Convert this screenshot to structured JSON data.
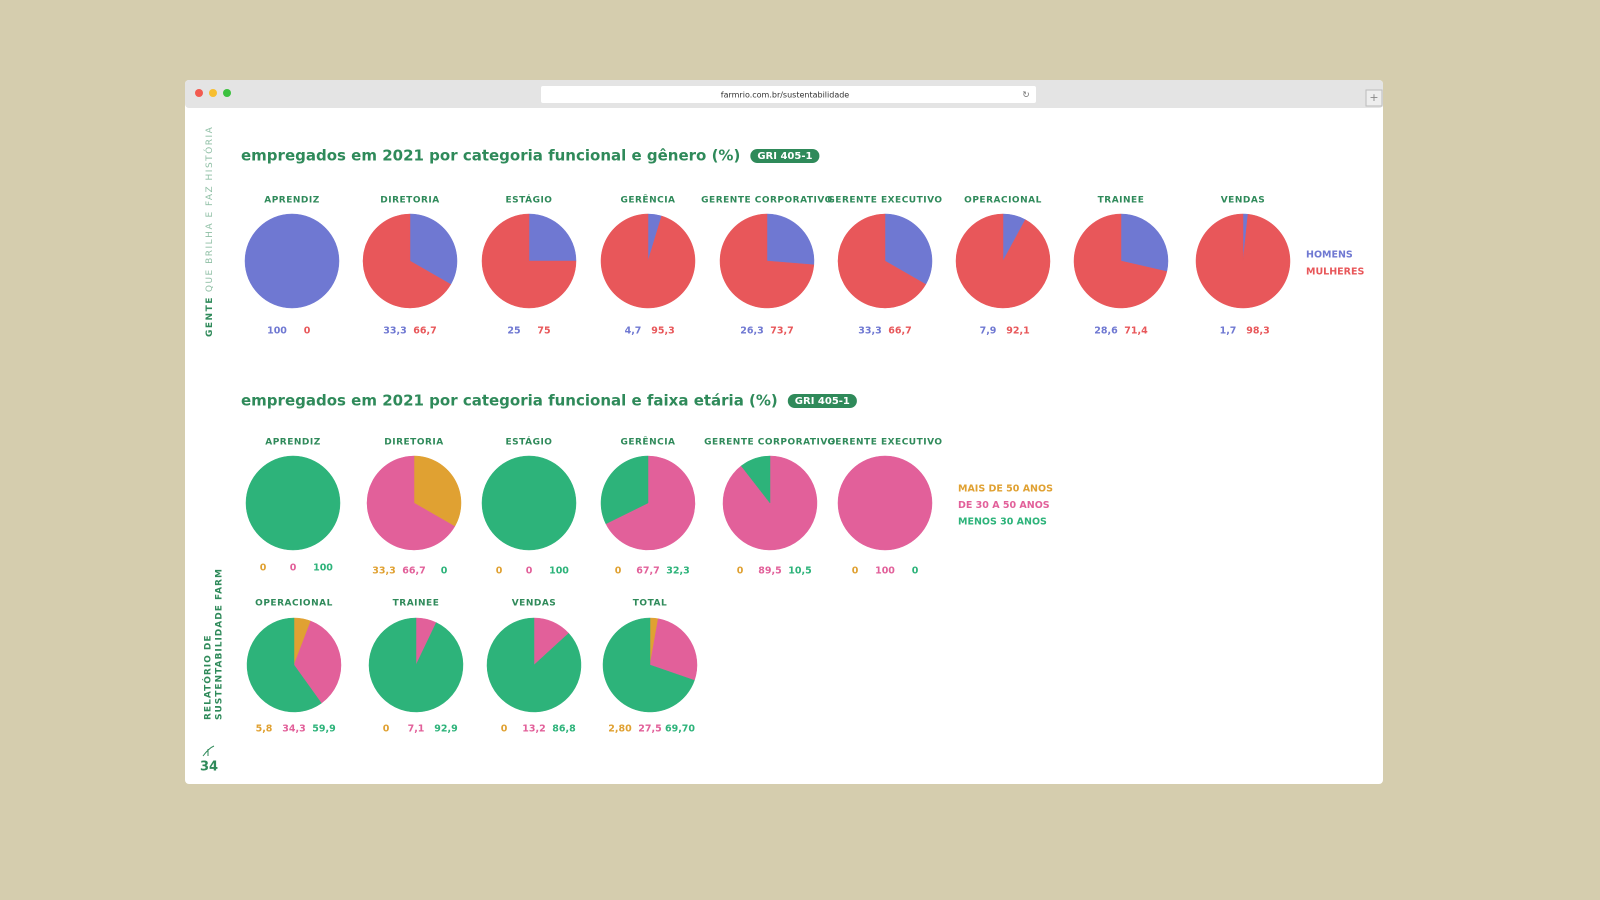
{
  "browser": {
    "url": "farmrio.com.br/sustentabilidade"
  },
  "sidebar": {
    "section_bold": "GENTE",
    "section": "QUE BRILHA E FAZ HISTÓRIA",
    "report_line1": "RELATÓRIO DE",
    "report_line2": "SUSTENTABILIDADE FARM",
    "page_number": 34
  },
  "chart_data": [
    {
      "type": "pie",
      "title": "empregados em 2021 por categoria funcional e gênero (%)",
      "badge": "GRI 405-1",
      "categories": [
        "APRENDIZ",
        "DIRETORIA",
        "ESTÁGIO",
        "GERÊNCIA",
        "GERENTE CORPORATIVO",
        "GERENTE EXECUTIVO",
        "OPERACIONAL",
        "TRAINEE",
        "VENDAS"
      ],
      "series": [
        {
          "name": "HOMENS",
          "color": "#6f78d2",
          "values": [
            100,
            33.3,
            25,
            4.7,
            26.3,
            33.3,
            7.9,
            28.6,
            1.7
          ],
          "value_labels": [
            "100",
            "33,3",
            "25",
            "4,7",
            "26,3",
            "33,3",
            "7,9",
            "28,6",
            "1,7"
          ]
        },
        {
          "name": "MULHERES",
          "color": "#e8575a",
          "values": [
            0,
            66.7,
            75,
            95.3,
            73.7,
            66.7,
            92.1,
            71.4,
            98.3
          ],
          "value_labels": [
            "0",
            "66,7",
            "75",
            "95,3",
            "73,7",
            "66,7",
            "92,1",
            "71,4",
            "98,3"
          ]
        }
      ]
    },
    {
      "type": "pie",
      "title": "empregados em 2021 por categoria funcional e faixa etária (%)",
      "badge": "GRI 405-1",
      "categories": [
        "APRENDIZ",
        "DIRETORIA",
        "ESTÁGIO",
        "GERÊNCIA",
        "GERENTE CORPORATIVO",
        "GERENTE EXECUTIVO",
        "OPERACIONAL",
        "TRAINEE",
        "VENDAS",
        "TOTAL"
      ],
      "series": [
        {
          "name": "MAIS DE 50 ANOS",
          "color": "#e0a132",
          "values": [
            0,
            33.3,
            0,
            0,
            0,
            0,
            5.8,
            0,
            0,
            2.8
          ],
          "value_labels": [
            "0",
            "33,3",
            "0",
            "0",
            "0",
            "0",
            "5,8",
            "0",
            "0",
            "2,80"
          ]
        },
        {
          "name": "DE 30 A 50 ANOS",
          "color": "#e2609a",
          "values": [
            0,
            66.7,
            0,
            67.7,
            89.5,
            100,
            34.3,
            7.1,
            13.2,
            27.5
          ],
          "value_labels": [
            "0",
            "66,7",
            "0",
            "67,7",
            "89,5",
            "100",
            "34,3",
            "7,1",
            "13,2",
            "27,5"
          ]
        },
        {
          "name": "MENOS 30 ANOS",
          "color": "#2db37a",
          "values": [
            100,
            0,
            100,
            32.3,
            10.5,
            0,
            59.9,
            92.9,
            86.8,
            69.7
          ],
          "value_labels": [
            "100",
            "0",
            "100",
            "32,3",
            "10,5",
            "0",
            "59,9",
            "92,9",
            "86,8",
            "69,70"
          ]
        }
      ]
    }
  ]
}
